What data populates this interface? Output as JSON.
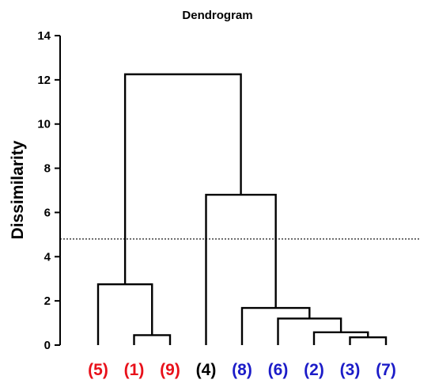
{
  "chart_data": {
    "type": "dendrogram",
    "title": "Dendrogram",
    "xlabel": "",
    "ylabel": "Dissimilarity",
    "ylim": [
      0,
      14
    ],
    "yticks": [
      0,
      2,
      4,
      6,
      8,
      10,
      12,
      14
    ],
    "grid": false,
    "cut_line": {
      "value": 4.8,
      "style": "dotted"
    },
    "leaves": [
      {
        "label": "(5)",
        "color": "#e8101a"
      },
      {
        "label": "(1)",
        "color": "#e8101a"
      },
      {
        "label": "(9)",
        "color": "#e8101a"
      },
      {
        "label": "(4)",
        "color": "#000000"
      },
      {
        "label": "(8)",
        "color": "#1c1cc8"
      },
      {
        "label": "(6)",
        "color": "#1c1cc8"
      },
      {
        "label": "(2)",
        "color": "#1c1cc8"
      },
      {
        "label": "(3)",
        "color": "#1c1cc8"
      },
      {
        "label": "(7)",
        "color": "#1c1cc8"
      }
    ],
    "merges": [
      {
        "left": [
          "(1)"
        ],
        "right": [
          "(9)"
        ],
        "height": 0.45
      },
      {
        "left": [
          "(5)"
        ],
        "right": [
          "(1)",
          "(9)"
        ],
        "height": 2.75
      },
      {
        "left": [
          "(3)"
        ],
        "right": [
          "(7)"
        ],
        "height": 0.35
      },
      {
        "left": [
          "(2)"
        ],
        "right": [
          "(3)",
          "(7)"
        ],
        "height": 0.58
      },
      {
        "left": [
          "(6)"
        ],
        "right": [
          "(2)",
          "(3)",
          "(7)"
        ],
        "height": 1.2
      },
      {
        "left": [
          "(8)"
        ],
        "right": [
          "(6)",
          "(2)",
          "(3)",
          "(7)"
        ],
        "height": 1.68
      },
      {
        "left": [
          "(4)"
        ],
        "right": [
          "(8)",
          "(6)",
          "(2)",
          "(3)",
          "(7)"
        ],
        "height": 6.8
      },
      {
        "left": [
          "(5)",
          "(1)",
          "(9)"
        ],
        "right": [
          "(4)",
          "(8)",
          "(6)",
          "(2)",
          "(3)",
          "(7)"
        ],
        "height": 12.25
      }
    ]
  }
}
